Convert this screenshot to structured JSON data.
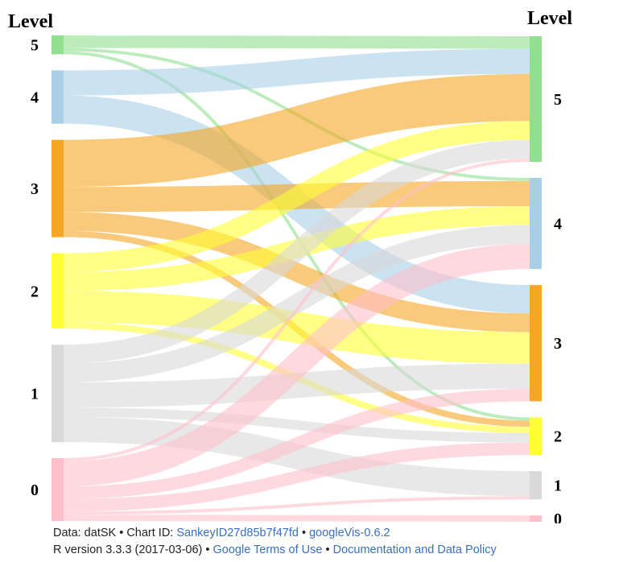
{
  "chart_data": {
    "type": "sankey",
    "left_title": "Level",
    "right_title": "Level",
    "nodes": {
      "left": [
        "5",
        "4",
        "3",
        "2",
        "1",
        "0"
      ],
      "right": [
        "5",
        "4",
        "3",
        "2",
        "1",
        "0"
      ]
    },
    "node_colors": {
      "5": "#90e090",
      "4": "#a8cfe6",
      "3": "#f5a623",
      "2": "#ffff33",
      "1": "#d9d9d9",
      "0": "#ffc0cb"
    },
    "flows": [
      {
        "from": "5",
        "to": "5",
        "value": 4
      },
      {
        "from": "5",
        "to": "4",
        "value": 1
      },
      {
        "from": "5",
        "to": "2",
        "value": 1
      },
      {
        "from": "4",
        "to": "5",
        "value": 8
      },
      {
        "from": "4",
        "to": "3",
        "value": 9
      },
      {
        "from": "3",
        "to": "5",
        "value": 15
      },
      {
        "from": "3",
        "to": "4",
        "value": 8
      },
      {
        "from": "3",
        "to": "3",
        "value": 6
      },
      {
        "from": "3",
        "to": "2",
        "value": 2
      },
      {
        "from": "2",
        "to": "5",
        "value": 6
      },
      {
        "from": "2",
        "to": "4",
        "value": 6
      },
      {
        "from": "2",
        "to": "3",
        "value": 10
      },
      {
        "from": "2",
        "to": "2",
        "value": 2
      },
      {
        "from": "1",
        "to": "5",
        "value": 6
      },
      {
        "from": "1",
        "to": "4",
        "value": 6
      },
      {
        "from": "1",
        "to": "3",
        "value": 8
      },
      {
        "from": "1",
        "to": "2",
        "value": 3
      },
      {
        "from": "1",
        "to": "1",
        "value": 8
      },
      {
        "from": "0",
        "to": "5",
        "value": 1
      },
      {
        "from": "0",
        "to": "4",
        "value": 8
      },
      {
        "from": "0",
        "to": "3",
        "value": 4
      },
      {
        "from": "0",
        "to": "2",
        "value": 4
      },
      {
        "from": "0",
        "to": "1",
        "value": 1
      },
      {
        "from": "0",
        "to": "0",
        "value": 2
      }
    ]
  },
  "footer": {
    "line1": {
      "prefix": "Data: datSK • Chart ID: ",
      "chart_id": "SankeyID27d85b7f47fd",
      "sep": " • ",
      "package": "googleVis-0.6.2"
    },
    "line2": {
      "prefix": "R version 3.3.3 (2017-03-06) • ",
      "terms": "Google Terms of Use",
      "sep": " • ",
      "policy": "Documentation and Data Policy"
    }
  }
}
